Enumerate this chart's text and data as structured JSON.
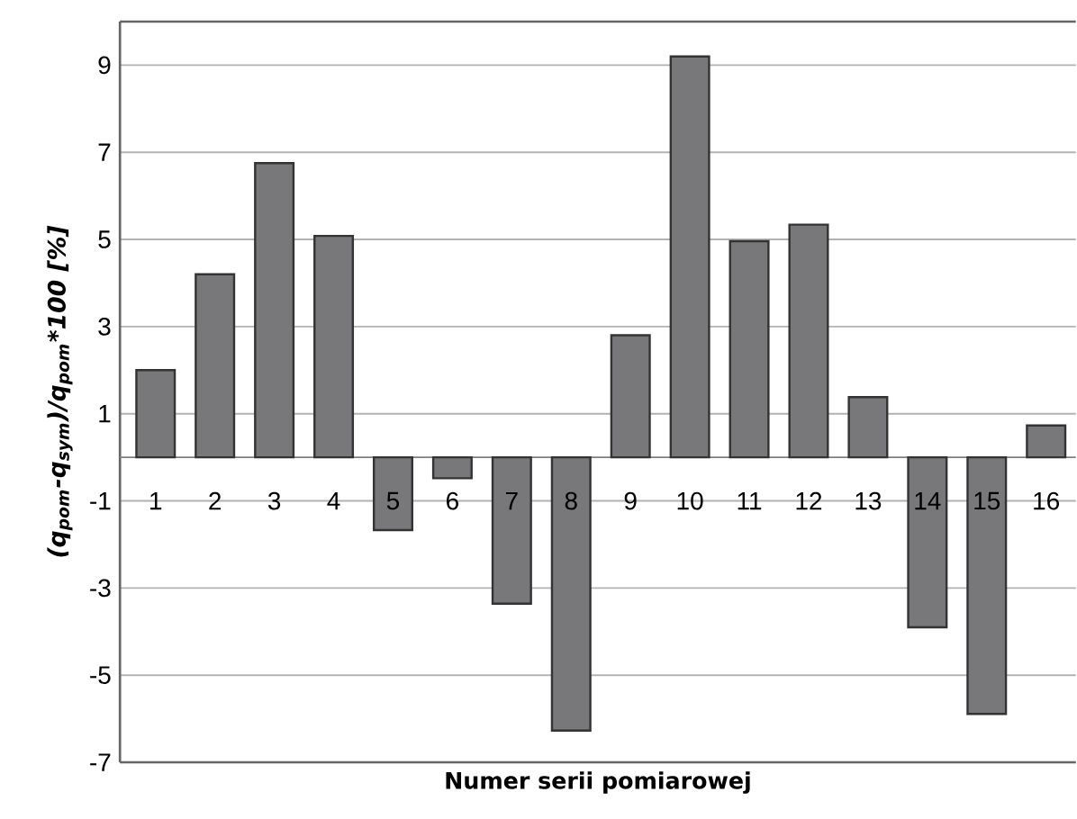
{
  "chart_data": {
    "type": "bar",
    "xlabel": "Numer serii pomiarowej",
    "ylabel": "(q$_{pom}$-q$_{sym}$)/q$_{pom}$*100 [%]",
    "categories": [
      "1",
      "2",
      "3",
      "4",
      "5",
      "6",
      "7",
      "8",
      "9",
      "10",
      "11",
      "12",
      "13",
      "14",
      "15",
      "16"
    ],
    "values": [
      2.0,
      4.2,
      6.75,
      5.08,
      -1.67,
      -0.48,
      -3.36,
      -6.27,
      2.8,
      9.2,
      4.96,
      5.34,
      1.38,
      -3.9,
      -5.89,
      0.73
    ],
    "color": "#78787b",
    "ylim": [
      -7,
      10
    ],
    "yticks": [
      -7,
      -5,
      -3,
      -1,
      1,
      3,
      5,
      7,
      9
    ],
    "grid": "y"
  }
}
